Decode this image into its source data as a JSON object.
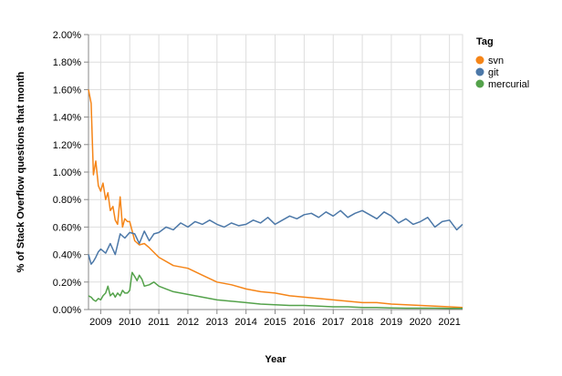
{
  "chart_data": {
    "type": "line",
    "xlabel": "Year",
    "ylabel": "% of Stack Overflow questions that month",
    "x_ticks": [
      "2009",
      "2010",
      "2011",
      "2012",
      "2013",
      "2014",
      "2015",
      "2016",
      "2017",
      "2018",
      "2019",
      "2020",
      "2021"
    ],
    "y_ticks": [
      "0.00%",
      "0.20%",
      "0.40%",
      "0.60%",
      "0.80%",
      "1.00%",
      "1.20%",
      "1.40%",
      "1.60%",
      "1.80%",
      "2.00%"
    ],
    "xlim": [
      2008.58,
      2021.45
    ],
    "ylim": [
      0,
      2.0
    ],
    "grid": true,
    "legend": {
      "title": "Tag",
      "position": "right"
    },
    "series": [
      {
        "name": "svn",
        "color": "#f58518",
        "x": [
          2008.58,
          2008.67,
          2008.75,
          2008.83,
          2008.92,
          2009.0,
          2009.08,
          2009.17,
          2009.25,
          2009.33,
          2009.42,
          2009.5,
          2009.58,
          2009.67,
          2009.75,
          2009.83,
          2009.92,
          2010.0,
          2010.17,
          2010.33,
          2010.5,
          2010.67,
          2011.0,
          2011.5,
          2012.0,
          2012.5,
          2013.0,
          2013.5,
          2014.0,
          2014.5,
          2015.0,
          2015.5,
          2016.0,
          2016.5,
          2017.0,
          2017.5,
          2018.0,
          2018.5,
          2019.0,
          2019.5,
          2020.0,
          2020.5,
          2021.0,
          2021.45
        ],
        "values": [
          1.6,
          1.5,
          0.98,
          1.08,
          0.9,
          0.86,
          0.92,
          0.8,
          0.85,
          0.72,
          0.75,
          0.65,
          0.62,
          0.82,
          0.6,
          0.66,
          0.64,
          0.64,
          0.5,
          0.47,
          0.48,
          0.45,
          0.38,
          0.32,
          0.3,
          0.25,
          0.2,
          0.18,
          0.15,
          0.13,
          0.12,
          0.1,
          0.09,
          0.08,
          0.07,
          0.06,
          0.05,
          0.05,
          0.04,
          0.035,
          0.03,
          0.025,
          0.02,
          0.015
        ]
      },
      {
        "name": "git",
        "color": "#4c78a8",
        "x": [
          2008.58,
          2008.67,
          2008.75,
          2008.83,
          2008.92,
          2009.0,
          2009.17,
          2009.33,
          2009.5,
          2009.67,
          2009.83,
          2010.0,
          2010.17,
          2010.33,
          2010.5,
          2010.67,
          2010.83,
          2011.0,
          2011.25,
          2011.5,
          2011.75,
          2012.0,
          2012.25,
          2012.5,
          2012.75,
          2013.0,
          2013.25,
          2013.5,
          2013.75,
          2014.0,
          2014.25,
          2014.5,
          2014.75,
          2015.0,
          2015.25,
          2015.5,
          2015.75,
          2016.0,
          2016.25,
          2016.5,
          2016.75,
          2017.0,
          2017.25,
          2017.5,
          2017.75,
          2018.0,
          2018.25,
          2018.5,
          2018.75,
          2019.0,
          2019.25,
          2019.5,
          2019.75,
          2020.0,
          2020.25,
          2020.5,
          2020.75,
          2021.0,
          2021.25,
          2021.45
        ],
        "values": [
          0.4,
          0.33,
          0.35,
          0.38,
          0.42,
          0.44,
          0.41,
          0.48,
          0.4,
          0.55,
          0.52,
          0.56,
          0.55,
          0.48,
          0.57,
          0.5,
          0.55,
          0.56,
          0.6,
          0.58,
          0.63,
          0.6,
          0.64,
          0.62,
          0.65,
          0.62,
          0.6,
          0.63,
          0.61,
          0.62,
          0.65,
          0.63,
          0.67,
          0.62,
          0.65,
          0.68,
          0.66,
          0.69,
          0.7,
          0.67,
          0.71,
          0.68,
          0.72,
          0.67,
          0.7,
          0.72,
          0.69,
          0.66,
          0.71,
          0.68,
          0.63,
          0.66,
          0.62,
          0.64,
          0.67,
          0.6,
          0.64,
          0.65,
          0.58,
          0.62
        ]
      },
      {
        "name": "mercurial",
        "color": "#54a24b",
        "x": [
          2008.58,
          2008.67,
          2008.75,
          2008.83,
          2008.92,
          2009.0,
          2009.08,
          2009.17,
          2009.25,
          2009.33,
          2009.42,
          2009.5,
          2009.58,
          2009.67,
          2009.75,
          2009.83,
          2009.92,
          2010.0,
          2010.08,
          2010.17,
          2010.25,
          2010.33,
          2010.42,
          2010.5,
          2010.67,
          2010.83,
          2011.0,
          2011.25,
          2011.5,
          2011.75,
          2012.0,
          2012.5,
          2013.0,
          2013.5,
          2014.0,
          2014.5,
          2015.0,
          2015.5,
          2016.0,
          2016.5,
          2017.0,
          2017.5,
          2018.0,
          2018.5,
          2019.0,
          2019.5,
          2020.0,
          2020.5,
          2021.0,
          2021.45
        ],
        "values": [
          0.1,
          0.09,
          0.07,
          0.06,
          0.08,
          0.07,
          0.1,
          0.12,
          0.17,
          0.1,
          0.12,
          0.09,
          0.12,
          0.1,
          0.14,
          0.12,
          0.12,
          0.14,
          0.27,
          0.24,
          0.21,
          0.25,
          0.22,
          0.17,
          0.18,
          0.2,
          0.17,
          0.15,
          0.13,
          0.12,
          0.11,
          0.09,
          0.07,
          0.06,
          0.05,
          0.04,
          0.035,
          0.03,
          0.03,
          0.025,
          0.02,
          0.02,
          0.015,
          0.015,
          0.012,
          0.01,
          0.01,
          0.01,
          0.008,
          0.008
        ]
      }
    ]
  }
}
